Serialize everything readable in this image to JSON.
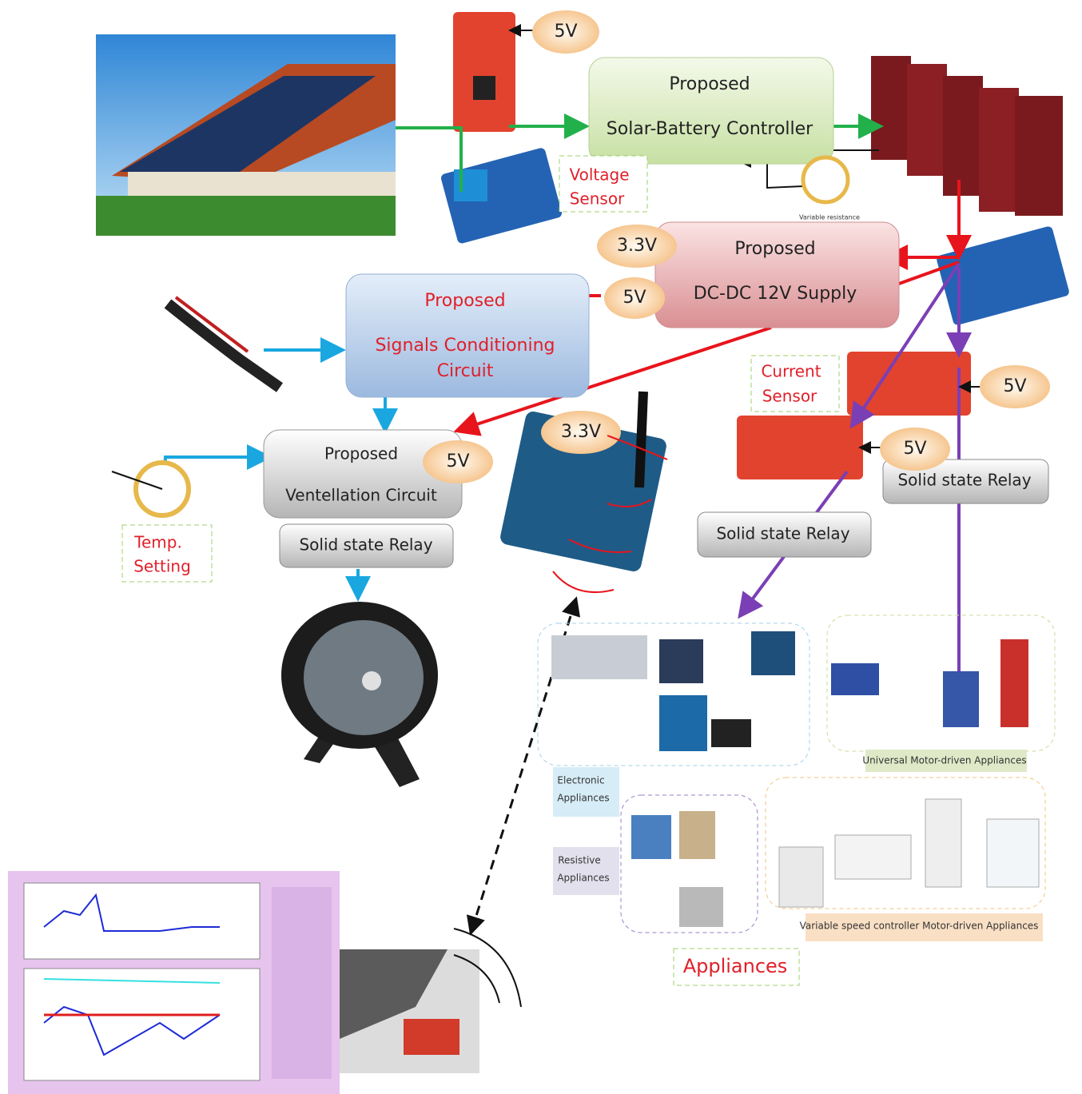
{
  "blocks": [
    {
      "lines": [
        "Proposed",
        "Solar-Battery Controller"
      ]
    },
    {
      "lines": [
        "Proposed",
        "DC-DC 12V Supply"
      ]
    },
    {
      "lines": [
        "Proposed",
        "Signals Conditioning",
        "Circuit"
      ]
    },
    {
      "lines": [
        "Proposed",
        "Ventellation Circuit"
      ]
    }
  ],
  "voltages": [
    "5V",
    "3.3V",
    "5V",
    "5V",
    "3.3V",
    "5V",
    "5V"
  ],
  "relays": [
    "Solid state Relay",
    "Solid state Relay",
    "Solid state Relay"
  ],
  "sensor_labels": [
    [
      "Voltage",
      "Sensor"
    ],
    [
      "Current",
      "Sensor"
    ],
    [
      "Temp.",
      "Setting"
    ]
  ],
  "variable_resistance": "Variable resistance",
  "appliance_groups": [
    [
      "Electronic",
      "Appliances"
    ],
    [
      "Resistive",
      "Appliances"
    ],
    "Universal Motor-driven Appliances",
    "Variable speed controller Motor-driven Appliances"
  ],
  "appliances": "Appliances"
}
